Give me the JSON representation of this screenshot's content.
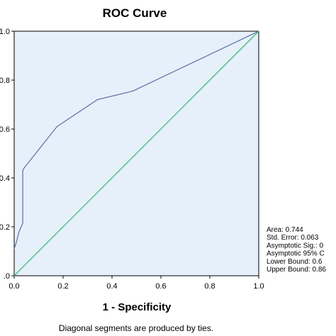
{
  "chart_data": {
    "type": "line",
    "title": "ROC Curve",
    "xlabel": "1 - Specificity",
    "ylabel": "",
    "xlim": [
      0,
      1
    ],
    "ylim": [
      0,
      1
    ],
    "x_ticks": [
      "0.0",
      "0.2",
      "0.4",
      "0.6",
      "0.8",
      "1.0"
    ],
    "y_ticks": [
      ".0",
      "0.2",
      "0.4",
      "0.6",
      "0.8",
      "1.0"
    ],
    "grid": false,
    "series": [
      {
        "color": "#6478a8",
        "points": [
          [
            0.0,
            0.11
          ],
          [
            0.01,
            0.14
          ],
          [
            0.02,
            0.18
          ],
          [
            0.035,
            0.215
          ],
          [
            0.035,
            0.43
          ],
          [
            0.04,
            0.44
          ],
          [
            0.175,
            0.61
          ],
          [
            0.34,
            0.72
          ],
          [
            0.485,
            0.755
          ],
          [
            1.0,
            1.0
          ]
        ]
      },
      {
        "color": "#3cb878",
        "points": [
          [
            0.0,
            0.0
          ],
          [
            1.0,
            1.0
          ]
        ]
      }
    ],
    "footnote": "Diagonal segments are produced by ties.",
    "annotations": [
      "Area: 0.744",
      "Std. Error: 0.063",
      "Asymptotic Sig.: 0",
      "Asymptotic 95% C",
      "Lower Bound: 0.6",
      "Upper Bound: 0.86"
    ]
  },
  "colors": {
    "plot_background": "#e6f0fa",
    "frame": "#000000"
  }
}
